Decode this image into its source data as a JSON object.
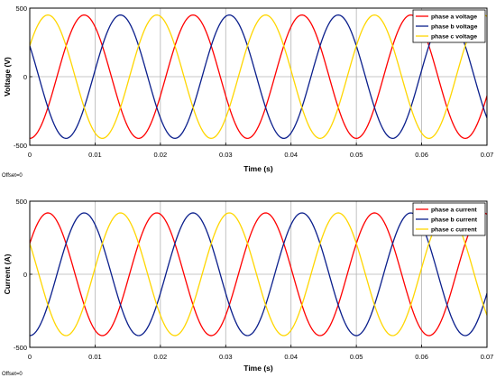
{
  "chart_data": [
    {
      "type": "line",
      "xlabel": "Time (s)",
      "ylabel": "Voltage (V)",
      "xlim": [
        0,
        0.07
      ],
      "ylim": [
        -500,
        500
      ],
      "x_ticks": [
        0,
        0.01,
        0.02,
        0.03,
        0.04,
        0.05,
        0.06,
        0.07
      ],
      "x_tick_labels": [
        "0",
        "0.01",
        "0.02",
        "0.03",
        "0.04",
        "0.05",
        "0.06",
        "0.07"
      ],
      "y_ticks": [
        -500,
        0,
        500
      ],
      "y_tick_labels": [
        "-500",
        "0",
        "500"
      ],
      "grid": true,
      "legend_position": "top-right",
      "offset_label": "Offset=0",
      "waveform": {
        "amplitude": 450,
        "frequency": 60,
        "sample_count": 281
      },
      "series": [
        {
          "name": "phase a voltage",
          "color": "#ff0000",
          "phase_deg": -90
        },
        {
          "name": "phase b voltage",
          "color": "#0b1f8c",
          "phase_deg": 150
        },
        {
          "name": "phase c voltage",
          "color": "#ffd600",
          "phase_deg": 30
        }
      ]
    },
    {
      "type": "line",
      "xlabel": "Time (s)",
      "ylabel": "Current (A)",
      "xlim": [
        0,
        0.07
      ],
      "ylim": [
        -500,
        500
      ],
      "x_ticks": [
        0,
        0.01,
        0.02,
        0.03,
        0.04,
        0.05,
        0.06,
        0.07
      ],
      "x_tick_labels": [
        "0",
        "0.01",
        "0.02",
        "0.03",
        "0.04",
        "0.05",
        "0.06",
        "0.07"
      ],
      "y_ticks": [
        -500,
        0,
        500
      ],
      "y_tick_labels": [
        "-500",
        "0",
        "500"
      ],
      "grid": true,
      "legend_position": "top-right",
      "offset_label": "Offset=0",
      "waveform": {
        "amplitude": 420,
        "frequency": 60,
        "sample_count": 281
      },
      "series": [
        {
          "name": "phase a current",
          "color": "#ff0000",
          "phase_deg": 30
        },
        {
          "name": "phase b current",
          "color": "#0b1f8c",
          "phase_deg": -90
        },
        {
          "name": "phase c current",
          "color": "#ffd600",
          "phase_deg": 150
        }
      ]
    }
  ]
}
